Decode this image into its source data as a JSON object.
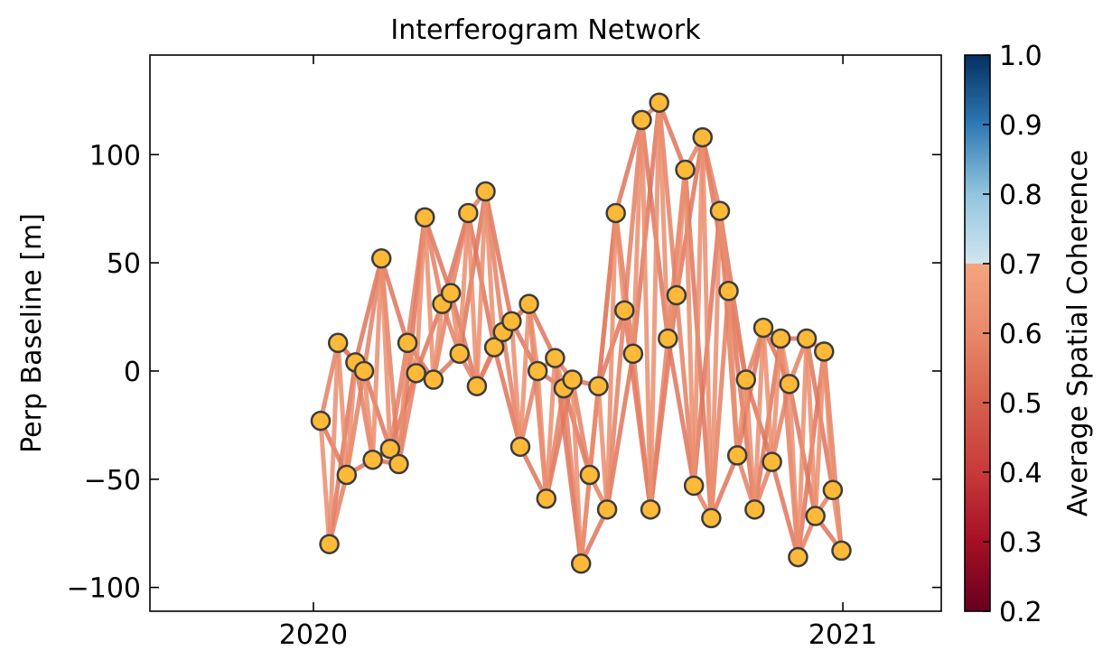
{
  "chart_data": {
    "type": "network",
    "title": "Interferogram Network",
    "ylabel": "Perp Baseline [m]",
    "xlabel": "",
    "x_ticks": [
      "2020",
      "2021"
    ],
    "x_tick_dates": [
      "2020-01-01",
      "2021-01-01"
    ],
    "xlim": [
      "2019-09-10",
      "2021-03-10"
    ],
    "ylim": [
      -111,
      146
    ],
    "y_ticks": [
      -100,
      -50,
      0,
      50,
      100
    ],
    "y_tick_labels": [
      "−100",
      "−50",
      "0",
      "50",
      "100"
    ],
    "grid": false,
    "node_color": "#fdb937",
    "node_edge_color": "#3c3c3c",
    "colorbar": {
      "label": "Average Spatial Coherence",
      "range": [
        0.2,
        1.0
      ],
      "ticks": [
        0.2,
        0.3,
        0.4,
        0.5,
        0.6,
        0.7,
        0.8,
        0.9,
        1.0
      ],
      "tick_labels": [
        "0.2",
        "0.3",
        "0.4",
        "0.5",
        "0.6",
        "0.7",
        "0.8",
        "0.9",
        "1.0"
      ],
      "colormap": "RdBu",
      "colormap_stops": [
        {
          "value": 0.2,
          "color": "#67001f"
        },
        {
          "value": 0.3,
          "color": "#a50f26"
        },
        {
          "value": 0.4,
          "color": "#c8393a"
        },
        {
          "value": 0.5,
          "color": "#d6604d"
        },
        {
          "value": 0.6,
          "color": "#e8886a"
        },
        {
          "value": 0.7,
          "color": "#f4a582"
        },
        {
          "value": 0.7,
          "color": "#d1e5f0"
        },
        {
          "value": 0.8,
          "color": "#92c5de"
        },
        {
          "value": 0.9,
          "color": "#2f79b5"
        },
        {
          "value": 1.0,
          "color": "#053061"
        }
      ]
    },
    "acquisitions": [
      {
        "date": "2020-01-06",
        "bperp": -23
      },
      {
        "date": "2020-01-12",
        "bperp": -80
      },
      {
        "date": "2020-01-18",
        "bperp": 13
      },
      {
        "date": "2020-01-24",
        "bperp": -48
      },
      {
        "date": "2020-01-30",
        "bperp": 4
      },
      {
        "date": "2020-02-05",
        "bperp": 0
      },
      {
        "date": "2020-02-11",
        "bperp": -41
      },
      {
        "date": "2020-02-17",
        "bperp": 52
      },
      {
        "date": "2020-02-23",
        "bperp": -36
      },
      {
        "date": "2020-02-29",
        "bperp": -43
      },
      {
        "date": "2020-03-06",
        "bperp": 13
      },
      {
        "date": "2020-03-12",
        "bperp": -1
      },
      {
        "date": "2020-03-18",
        "bperp": 71
      },
      {
        "date": "2020-03-24",
        "bperp": -4
      },
      {
        "date": "2020-03-30",
        "bperp": 31
      },
      {
        "date": "2020-04-05",
        "bperp": 36
      },
      {
        "date": "2020-04-11",
        "bperp": 8
      },
      {
        "date": "2020-04-17",
        "bperp": 73
      },
      {
        "date": "2020-04-23",
        "bperp": -7
      },
      {
        "date": "2020-04-29",
        "bperp": 83
      },
      {
        "date": "2020-05-05",
        "bperp": 11
      },
      {
        "date": "2020-05-11",
        "bperp": 18
      },
      {
        "date": "2020-05-17",
        "bperp": 23
      },
      {
        "date": "2020-05-23",
        "bperp": -35
      },
      {
        "date": "2020-05-29",
        "bperp": 31
      },
      {
        "date": "2020-06-04",
        "bperp": 0
      },
      {
        "date": "2020-06-10",
        "bperp": -59
      },
      {
        "date": "2020-06-16",
        "bperp": 6
      },
      {
        "date": "2020-06-22",
        "bperp": -8
      },
      {
        "date": "2020-06-28",
        "bperp": -4
      },
      {
        "date": "2020-07-04",
        "bperp": -89
      },
      {
        "date": "2020-07-10",
        "bperp": -48
      },
      {
        "date": "2020-07-16",
        "bperp": -7
      },
      {
        "date": "2020-07-22",
        "bperp": -64
      },
      {
        "date": "2020-07-28",
        "bperp": 73
      },
      {
        "date": "2020-08-03",
        "bperp": 28
      },
      {
        "date": "2020-08-09",
        "bperp": 8
      },
      {
        "date": "2020-08-15",
        "bperp": 116
      },
      {
        "date": "2020-08-21",
        "bperp": -64
      },
      {
        "date": "2020-08-27",
        "bperp": 124
      },
      {
        "date": "2020-09-02",
        "bperp": 15
      },
      {
        "date": "2020-09-08",
        "bperp": 35
      },
      {
        "date": "2020-09-14",
        "bperp": 93
      },
      {
        "date": "2020-09-20",
        "bperp": -53
      },
      {
        "date": "2020-09-26",
        "bperp": 108
      },
      {
        "date": "2020-10-02",
        "bperp": -68
      },
      {
        "date": "2020-10-08",
        "bperp": 74
      },
      {
        "date": "2020-10-14",
        "bperp": 37
      },
      {
        "date": "2020-10-20",
        "bperp": -39
      },
      {
        "date": "2020-10-26",
        "bperp": -4
      },
      {
        "date": "2020-11-01",
        "bperp": -64
      },
      {
        "date": "2020-11-07",
        "bperp": 20
      },
      {
        "date": "2020-11-13",
        "bperp": -42
      },
      {
        "date": "2020-11-19",
        "bperp": 15
      },
      {
        "date": "2020-11-25",
        "bperp": -6
      },
      {
        "date": "2020-12-01",
        "bperp": -86
      },
      {
        "date": "2020-12-07",
        "bperp": 15
      },
      {
        "date": "2020-12-13",
        "bperp": -67
      },
      {
        "date": "2020-12-19",
        "bperp": 9
      },
      {
        "date": "2020-12-25",
        "bperp": -55
      },
      {
        "date": "2020-12-31",
        "bperp": -83
      }
    ],
    "interferograms": {
      "description_of_pairs": "each acquisition connected to its next 1, 2 and 3 acquisitions",
      "coherence_by_gap": {
        "1": 0.62,
        "2": 0.58,
        "3": 0.55
      }
    }
  }
}
